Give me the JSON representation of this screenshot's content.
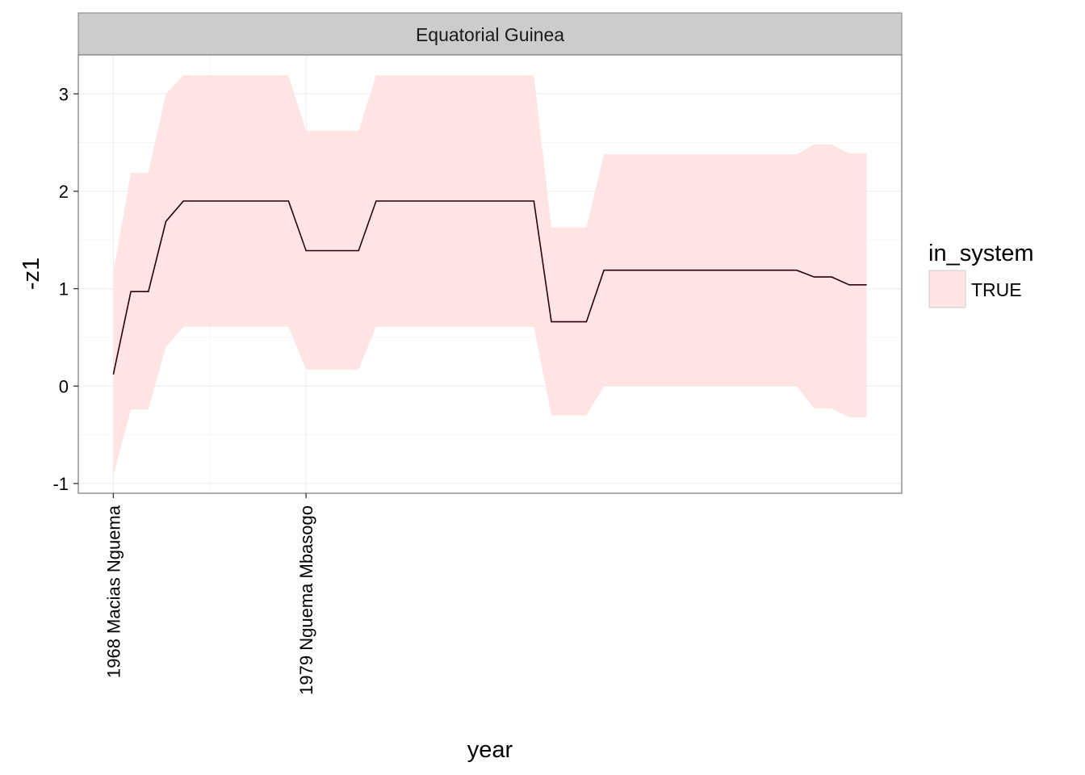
{
  "chart_data": {
    "type": "area",
    "facet_label": "Equatorial Guinea",
    "xlabel": "year",
    "ylabel": "-z1",
    "xlim": [
      1966,
      2013
    ],
    "ylim": [
      -1.1,
      3.4
    ],
    "y_ticks": [
      -1,
      0,
      1,
      2,
      3
    ],
    "y_tick_labels": [
      "-1",
      "0",
      "1",
      "2",
      "3"
    ],
    "x_ticks": [
      1968,
      1979
    ],
    "x_tick_labels": [
      "1968 Macias Nguema",
      "1979 Nguema Mbasogo"
    ],
    "grid": true,
    "legend": {
      "title": "in_system",
      "placement": "right",
      "entries": [
        {
          "label": "TRUE",
          "color": "#ffe4e4"
        }
      ]
    },
    "colors": {
      "ribbon": "#ffe4e4",
      "line": "#2a0000",
      "strip_bg": "#cccccc",
      "grid": "#ececec"
    },
    "series": [
      {
        "x": [
          1968,
          1969,
          1970,
          1971,
          1972,
          1973,
          1974,
          1975,
          1976,
          1977,
          1978,
          1979,
          1980,
          1981,
          1982,
          1983,
          1984,
          1985,
          1986,
          1987,
          1988,
          1989,
          1990,
          1991,
          1992,
          1993,
          1994,
          1995,
          1996,
          1997,
          1998,
          1999,
          2000,
          2001,
          2002,
          2003,
          2004,
          2005,
          2006,
          2007,
          2008,
          2009,
          2010,
          2011
        ],
        "y": [
          0.12,
          0.97,
          0.97,
          1.69,
          1.9,
          1.9,
          1.9,
          1.9,
          1.9,
          1.9,
          1.9,
          1.39,
          1.39,
          1.39,
          1.39,
          1.9,
          1.9,
          1.9,
          1.9,
          1.9,
          1.9,
          1.9,
          1.9,
          1.9,
          1.9,
          0.66,
          0.66,
          0.66,
          1.19,
          1.19,
          1.19,
          1.19,
          1.19,
          1.19,
          1.19,
          1.19,
          1.19,
          1.19,
          1.19,
          1.19,
          1.12,
          1.12,
          1.04,
          1.04
        ],
        "ymin": [
          -0.92,
          -0.24,
          -0.24,
          0.4,
          0.61,
          0.61,
          0.61,
          0.61,
          0.61,
          0.61,
          0.61,
          0.17,
          0.17,
          0.17,
          0.17,
          0.61,
          0.61,
          0.61,
          0.61,
          0.61,
          0.61,
          0.61,
          0.61,
          0.61,
          0.61,
          -0.3,
          -0.3,
          -0.3,
          0.0,
          0.0,
          0.0,
          0.0,
          0.0,
          0.0,
          0.0,
          0.0,
          0.0,
          0.0,
          0.0,
          0.0,
          -0.23,
          -0.23,
          -0.32,
          -0.32
        ],
        "ymax": [
          1.16,
          2.19,
          2.19,
          3.0,
          3.19,
          3.19,
          3.19,
          3.19,
          3.19,
          3.19,
          3.19,
          2.62,
          2.62,
          2.62,
          2.62,
          3.19,
          3.19,
          3.19,
          3.19,
          3.19,
          3.19,
          3.19,
          3.19,
          3.19,
          3.19,
          1.63,
          1.63,
          1.63,
          2.38,
          2.38,
          2.38,
          2.38,
          2.38,
          2.38,
          2.38,
          2.38,
          2.38,
          2.38,
          2.38,
          2.38,
          2.48,
          2.48,
          2.39,
          2.39
        ]
      }
    ]
  }
}
